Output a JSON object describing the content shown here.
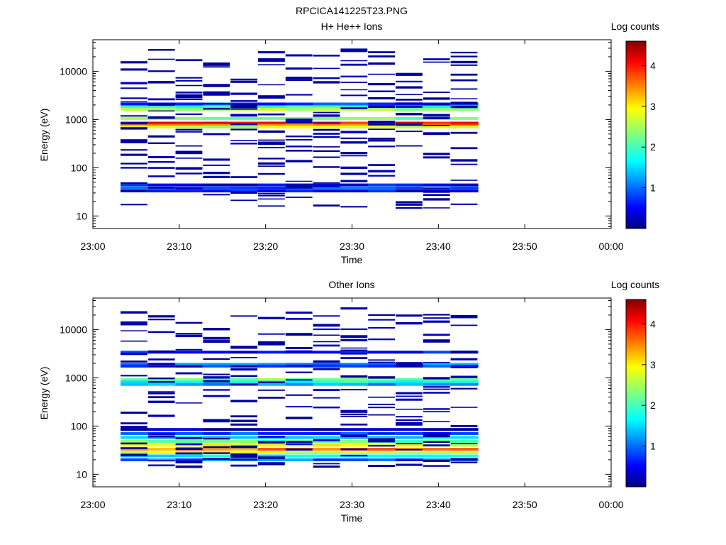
{
  "figure_title": "RPCICA141225T23.PNG",
  "colorbar": {
    "label": "Log counts",
    "ticks": [
      "1",
      "2",
      "3",
      "4"
    ],
    "tick_values": [
      1,
      2,
      3,
      4
    ],
    "range": [
      0,
      4.6
    ]
  },
  "chart_data": [
    {
      "type": "heatmap",
      "title": "H+ He++ Ions",
      "xlabel": "Time",
      "ylabel": "Energy (eV)",
      "x_ticks": [
        "23:00",
        "23:10",
        "23:20",
        "23:30",
        "23:40",
        "23:50",
        "00:00"
      ],
      "x_range_minutes": [
        0,
        60
      ],
      "x_data_range_minutes": [
        3.2,
        44.6
      ],
      "y_scale": "log",
      "y_ticks": [
        "10",
        "100",
        "1000",
        "10000"
      ],
      "y_range": [
        5.5,
        45000
      ],
      "bands": [
        {
          "energy": 840,
          "level": 4.0
        },
        {
          "energy": 760,
          "level": 3.6
        },
        {
          "energy": 700,
          "level": 2.7
        },
        {
          "energy": 1050,
          "level": 2.2
        },
        {
          "energy": 1620,
          "level": 2.5
        },
        {
          "energy": 1850,
          "level": 1.8
        },
        {
          "energy": 2100,
          "level": 0.8
        },
        {
          "energy": 44,
          "level": 0.5
        },
        {
          "energy": 38,
          "level": 0.9
        },
        {
          "energy": 33,
          "level": 0.6
        }
      ],
      "sparse_levels": 0.1
    },
    {
      "type": "heatmap",
      "title": "Other Ions",
      "xlabel": "Time",
      "ylabel": "Energy (eV)",
      "x_ticks": [
        "23:00",
        "23:10",
        "23:20",
        "23:30",
        "23:40",
        "23:50",
        "00:00"
      ],
      "x_range_minutes": [
        0,
        60
      ],
      "x_data_range_minutes": [
        3.2,
        44.6
      ],
      "y_scale": "log",
      "y_ticks": [
        "10",
        "100",
        "1000",
        "10000"
      ],
      "y_range": [
        5.5,
        45000
      ],
      "bands": [
        {
          "energy": 3400,
          "level": 0.6
        },
        {
          "energy": 1900,
          "level": 1.1
        },
        {
          "energy": 1750,
          "level": 0.8
        },
        {
          "energy": 920,
          "level": 2.4
        },
        {
          "energy": 820,
          "level": 1.8
        },
        {
          "energy": 730,
          "level": 1.2
        },
        {
          "energy": 85,
          "level": 0.2
        },
        {
          "energy": 70,
          "level": 0.8
        },
        {
          "energy": 58,
          "level": 1.4
        },
        {
          "energy": 48,
          "level": 2.2
        },
        {
          "energy": 40,
          "level": 2.8
        },
        {
          "energy": 33,
          "level": 3.5
        },
        {
          "energy": 28,
          "level": 2.8
        },
        {
          "energy": 24,
          "level": 1.6
        },
        {
          "energy": 20,
          "level": 1.0
        }
      ],
      "sparse_levels": 0.1
    }
  ]
}
